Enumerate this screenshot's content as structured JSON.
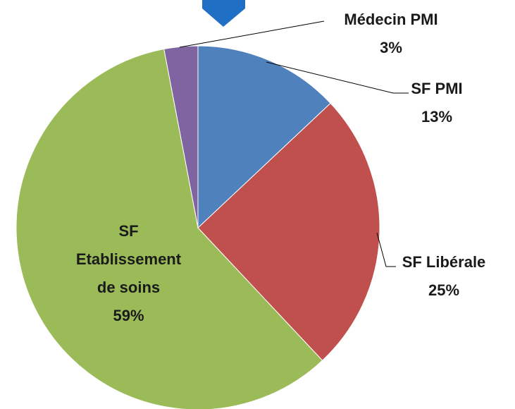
{
  "chart_data": {
    "type": "pie",
    "categories": [
      "SF PMI",
      "SF Libérale",
      "SF Etablissement de soins",
      "Médecin PMI"
    ],
    "values": [
      13,
      25,
      59,
      3
    ],
    "value_labels": [
      "13%",
      "25%",
      "59%",
      "3%"
    ],
    "colors": [
      "#4f81bd",
      "#c0504d",
      "#9bbb59",
      "#8064a2"
    ]
  }
}
